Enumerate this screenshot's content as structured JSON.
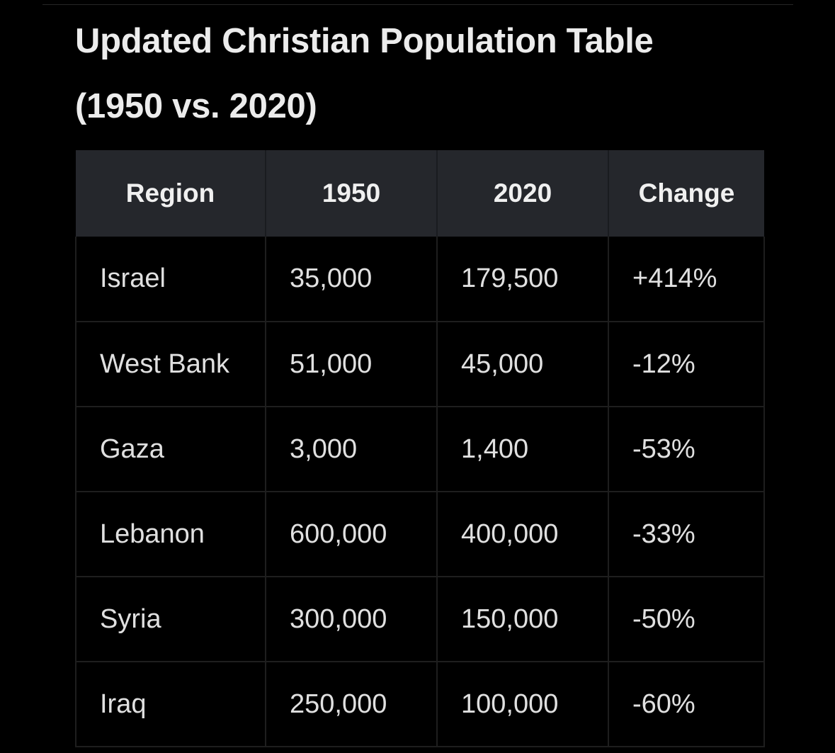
{
  "title": {
    "line1": "Updated Christian Population Table",
    "line2": "(1950 vs. 2020)"
  },
  "table": {
    "headers": [
      "Region",
      "1950",
      "2020",
      "Change"
    ],
    "rows": [
      [
        "Israel",
        "35,000",
        "179,500",
        "+414%"
      ],
      [
        "West Bank",
        "51,000",
        "45,000",
        "-12%"
      ],
      [
        "Gaza",
        "3,000",
        "1,400",
        "-53%"
      ],
      [
        "Lebanon",
        "600,000",
        "400,000",
        "-33%"
      ],
      [
        "Syria",
        "300,000",
        "150,000",
        "-50%"
      ],
      [
        "Iraq",
        "250,000",
        "100,000",
        "-60%"
      ]
    ]
  }
}
